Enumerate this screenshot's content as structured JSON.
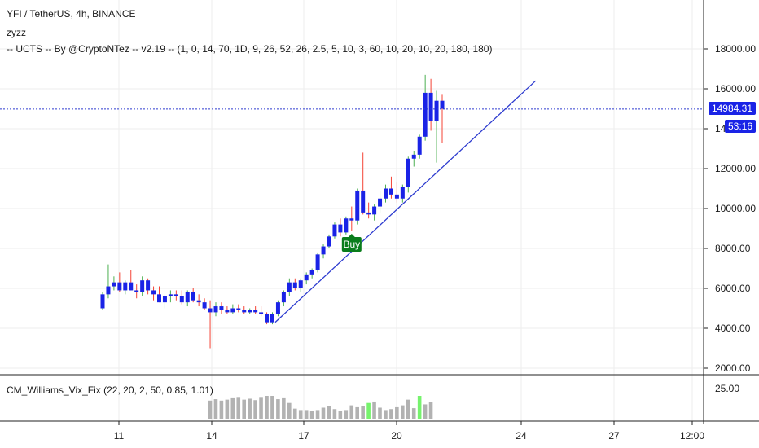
{
  "header": {
    "symbol_line": "YFI / TetherUS, 4h, BINANCE",
    "script_name": "zyzz",
    "indicator_line": "-- UCTS -- By @CryptoNTez -- v2.19 -- (1, 0, 14, 70, 1D, 9, 26, 52, 26, 2.5, 5, 10, 3, 60, 10, 20, 10, 20, 180, 180)"
  },
  "price_badge": {
    "value": "14984.31",
    "countdown": "53:16"
  },
  "signal_label": "Buy",
  "sub_indicator": {
    "label": "CM_Williams_Vix_Fix (22, 20, 2, 50, 0.85, 1.01)",
    "tick": "25.00"
  },
  "colors": {
    "up": "#4caf50",
    "down": "#f44336",
    "body": "#1a23e6",
    "trendline": "#2d3bcf",
    "buy": "#0a7d1c",
    "vix_gray": "#b2b2b2",
    "vix_green": "#76f36d"
  },
  "chart_data": {
    "type": "candlestick",
    "y_axis": {
      "ticks": [
        "18000.00",
        "16000.00",
        "14000.00",
        "12000.00",
        "10000.00",
        "8000.00",
        "6000.00",
        "4000.00",
        "2000.00"
      ],
      "range": [
        1600,
        18300
      ]
    },
    "x_axis": {
      "ticks": [
        "11",
        "14",
        "17",
        "20",
        "24",
        "27",
        "12:00"
      ]
    },
    "last_price": 14984.31,
    "candles": [
      [
        5000,
        5800,
        4900,
        5700
      ],
      [
        5700,
        7200,
        5500,
        6100
      ],
      [
        6100,
        6600,
        5900,
        6300
      ],
      [
        6300,
        6800,
        5800,
        5900
      ],
      [
        5900,
        6400,
        5700,
        6300
      ],
      [
        6300,
        6900,
        5900,
        5900
      ],
      [
        5900,
        6200,
        5500,
        5800
      ],
      [
        5800,
        6600,
        5600,
        6400
      ],
      [
        6400,
        6500,
        5700,
        5900
      ],
      [
        5900,
        6100,
        5400,
        5700
      ],
      [
        5700,
        6100,
        5300,
        5300
      ],
      [
        5300,
        5700,
        5000,
        5600
      ],
      [
        5600,
        5900,
        5300,
        5700
      ],
      [
        5700,
        5900,
        5400,
        5600
      ],
      [
        5600,
        5900,
        5200,
        5300
      ],
      [
        5300,
        5900,
        5100,
        5800
      ],
      [
        5800,
        6000,
        5300,
        5400
      ],
      [
        5400,
        5700,
        5100,
        5300
      ],
      [
        5300,
        5500,
        4900,
        5000
      ],
      [
        5000,
        5400,
        3000,
        4800
      ],
      [
        4800,
        5300,
        4600,
        5100
      ],
      [
        5100,
        5300,
        4700,
        4900
      ],
      [
        4900,
        5100,
        4700,
        4800
      ],
      [
        4800,
        5200,
        4700,
        5000
      ],
      [
        5000,
        5200,
        4800,
        4900
      ],
      [
        4900,
        5100,
        4700,
        4800
      ],
      [
        4800,
        5000,
        4700,
        4900
      ],
      [
        4900,
        5100,
        4700,
        4800
      ],
      [
        4800,
        5100,
        4600,
        4700
      ],
      [
        4700,
        4800,
        4200,
        4300
      ],
      [
        4300,
        4800,
        4200,
        4700
      ],
      [
        4700,
        5400,
        4600,
        5300
      ],
      [
        5300,
        5900,
        5100,
        5800
      ],
      [
        5800,
        6500,
        5600,
        6300
      ],
      [
        6300,
        6500,
        5900,
        6000
      ],
      [
        6000,
        6500,
        5800,
        6400
      ],
      [
        6400,
        6800,
        6200,
        6700
      ],
      [
        6700,
        7000,
        6500,
        6900
      ],
      [
        6900,
        7800,
        6800,
        7700
      ],
      [
        7700,
        8200,
        7500,
        8100
      ],
      [
        8100,
        8700,
        8000,
        8600
      ],
      [
        8600,
        9300,
        8500,
        9200
      ],
      [
        9200,
        9500,
        8600,
        8800
      ],
      [
        8800,
        9600,
        8700,
        9500
      ],
      [
        9500,
        10100,
        8900,
        9400
      ],
      [
        9400,
        11000,
        9200,
        10900
      ],
      [
        10900,
        12800,
        9700,
        9800
      ],
      [
        9800,
        10300,
        9500,
        9700
      ],
      [
        9700,
        10200,
        9400,
        10100
      ],
      [
        10100,
        10900,
        9800,
        10500
      ],
      [
        10500,
        11200,
        10300,
        11000
      ],
      [
        11000,
        11600,
        10500,
        10700
      ],
      [
        10700,
        11300,
        10300,
        10500
      ],
      [
        10500,
        11200,
        10300,
        11100
      ],
      [
        11100,
        12600,
        10800,
        12500
      ],
      [
        12500,
        12900,
        12100,
        12700
      ],
      [
        12700,
        13700,
        12500,
        13600
      ],
      [
        13600,
        16700,
        13400,
        15800
      ],
      [
        15800,
        16500,
        13900,
        14400
      ],
      [
        14400,
        15900,
        12300,
        15400
      ],
      [
        15400,
        15700,
        13300,
        15000
      ]
    ],
    "trendline": [
      [
        30.5,
        4300
      ],
      [
        76.5,
        16400
      ]
    ],
    "buy_signal_index": 44,
    "vix": {
      "values": [
        0.4,
        0.43,
        0.4,
        0.42,
        0.45,
        0.46,
        0.42,
        0.44,
        0.41,
        0.46,
        0.5,
        0.5,
        0.43,
        0.45,
        0.35,
        0.23,
        0.2,
        0.2,
        0.18,
        0.2,
        0.25,
        0.28,
        0.22,
        0.18,
        0.2,
        0.3,
        0.26,
        0.28,
        0.35,
        0.38,
        0.25,
        0.2,
        0.22,
        0.26,
        0.3,
        0.42,
        0.24,
        0.5,
        0.32,
        0.37
      ],
      "green_indices": [
        28,
        37
      ]
    }
  }
}
